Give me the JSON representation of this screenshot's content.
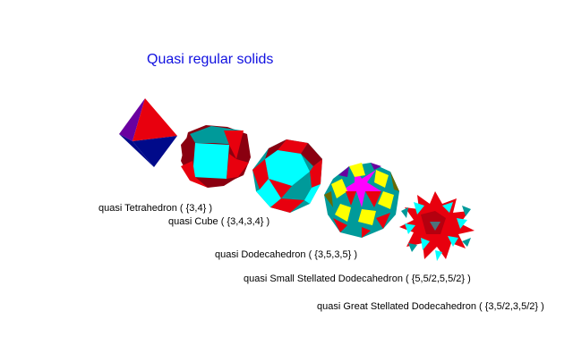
{
  "title": "Quasi regular solids",
  "colors": {
    "title": "#1010e0",
    "red": "#e8000e",
    "cyan": "#00ffff",
    "teal": "#009a9a",
    "dark_red": "#8a0010",
    "navy": "#000a8a",
    "purple": "#6a00a0",
    "yellow": "#ffff00",
    "magenta": "#ff00ff",
    "olive": "#6a6a00"
  },
  "solids": [
    {
      "label": "quasi Tetrahedron ( {3,4} )",
      "icon": "octahedron-icon"
    },
    {
      "label": "quasi Cube ( {3,4,3,4} )",
      "icon": "cuboctahedron-icon"
    },
    {
      "label": "quasi Dodecahedron ( {3,5,3,5} )",
      "icon": "icosidodecahedron-icon"
    },
    {
      "label": "quasi Small Stellated Dodecahedron ( {5,5/2,5,5/2} )",
      "icon": "dodecadodecahedron-icon"
    },
    {
      "label": "quasi Great Stellated Dodecahedron ( {3,5/2,3,5/2} )",
      "icon": "great-icosidodecahedron-icon"
    }
  ]
}
